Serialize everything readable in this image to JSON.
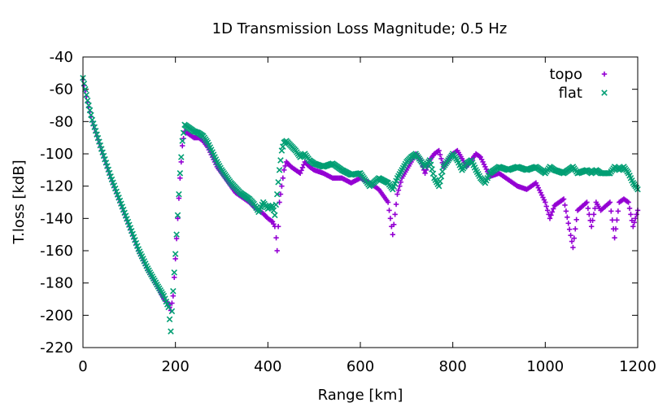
{
  "chart_data": {
    "type": "scatter",
    "title": "1D Transmission Loss Magnitude; 0.5 Hz",
    "xlabel": "Range [km]",
    "ylabel": "T.loss [kdB]",
    "xlim": [
      0,
      1200
    ],
    "ylim": [
      -220,
      -40
    ],
    "xticks": [
      0,
      200,
      400,
      600,
      800,
      1000,
      1200
    ],
    "yticks": [
      -220,
      -200,
      -180,
      -160,
      -140,
      -120,
      -100,
      -80,
      -60,
      -40
    ],
    "grid": false,
    "legend_position": "top-right",
    "series": [
      {
        "name": "topo",
        "color": "#9400d3",
        "marker": "plus",
        "points": [
          [
            0,
            -54
          ],
          [
            10,
            -68
          ],
          [
            20,
            -80
          ],
          [
            40,
            -98
          ],
          [
            60,
            -115
          ],
          [
            80,
            -130
          ],
          [
            100,
            -145
          ],
          [
            120,
            -160
          ],
          [
            140,
            -172
          ],
          [
            160,
            -182
          ],
          [
            175,
            -190
          ],
          [
            185,
            -193
          ],
          [
            190,
            -197
          ],
          [
            195,
            -188
          ],
          [
            200,
            -165
          ],
          [
            205,
            -140
          ],
          [
            210,
            -115
          ],
          [
            215,
            -95
          ],
          [
            220,
            -86
          ],
          [
            230,
            -88
          ],
          [
            240,
            -90
          ],
          [
            250,
            -90
          ],
          [
            260,
            -92
          ],
          [
            270,
            -96
          ],
          [
            280,
            -102
          ],
          [
            290,
            -108
          ],
          [
            300,
            -112
          ],
          [
            310,
            -116
          ],
          [
            320,
            -120
          ],
          [
            330,
            -124
          ],
          [
            340,
            -126
          ],
          [
            350,
            -128
          ],
          [
            360,
            -130
          ],
          [
            370,
            -133
          ],
          [
            380,
            -135
          ],
          [
            390,
            -137
          ],
          [
            400,
            -140
          ],
          [
            410,
            -142
          ],
          [
            415,
            -145
          ],
          [
            418,
            -152
          ],
          [
            420,
            -160
          ],
          [
            425,
            -130
          ],
          [
            430,
            -120
          ],
          [
            435,
            -110
          ],
          [
            440,
            -105
          ],
          [
            450,
            -108
          ],
          [
            460,
            -110
          ],
          [
            470,
            -112
          ],
          [
            480,
            -105
          ],
          [
            490,
            -108
          ],
          [
            500,
            -110
          ],
          [
            520,
            -112
          ],
          [
            540,
            -115
          ],
          [
            560,
            -115
          ],
          [
            580,
            -118
          ],
          [
            600,
            -115
          ],
          [
            620,
            -118
          ],
          [
            640,
            -122
          ],
          [
            660,
            -130
          ],
          [
            670,
            -150
          ],
          [
            680,
            -125
          ],
          [
            690,
            -115
          ],
          [
            700,
            -110
          ],
          [
            710,
            -105
          ],
          [
            720,
            -100
          ],
          [
            730,
            -104
          ],
          [
            740,
            -112
          ],
          [
            750,
            -104
          ],
          [
            760,
            -100
          ],
          [
            770,
            -98
          ],
          [
            780,
            -108
          ],
          [
            790,
            -104
          ],
          [
            800,
            -100
          ],
          [
            810,
            -98
          ],
          [
            820,
            -103
          ],
          [
            830,
            -108
          ],
          [
            840,
            -104
          ],
          [
            850,
            -100
          ],
          [
            860,
            -102
          ],
          [
            870,
            -108
          ],
          [
            880,
            -114
          ],
          [
            900,
            -112
          ],
          [
            920,
            -116
          ],
          [
            940,
            -120
          ],
          [
            960,
            -122
          ],
          [
            980,
            -118
          ],
          [
            1000,
            -130
          ],
          [
            1010,
            -140
          ],
          [
            1020,
            -132
          ],
          [
            1040,
            -128
          ],
          [
            1060,
            -158
          ],
          [
            1070,
            -135
          ],
          [
            1090,
            -130
          ],
          [
            1100,
            -145
          ],
          [
            1110,
            -130
          ],
          [
            1120,
            -135
          ],
          [
            1140,
            -130
          ],
          [
            1150,
            -152
          ],
          [
            1160,
            -130
          ],
          [
            1170,
            -128
          ],
          [
            1180,
            -130
          ],
          [
            1190,
            -145
          ],
          [
            1200,
            -135
          ]
        ]
      },
      {
        "name": "flat",
        "color": "#009e73",
        "marker": "cross",
        "points": [
          [
            0,
            -53
          ],
          [
            10,
            -67
          ],
          [
            20,
            -79
          ],
          [
            40,
            -97
          ],
          [
            60,
            -114
          ],
          [
            80,
            -129
          ],
          [
            100,
            -144
          ],
          [
            120,
            -159
          ],
          [
            140,
            -171
          ],
          [
            160,
            -181
          ],
          [
            175,
            -188
          ],
          [
            185,
            -195
          ],
          [
            190,
            -210
          ],
          [
            195,
            -185
          ],
          [
            200,
            -162
          ],
          [
            205,
            -138
          ],
          [
            210,
            -112
          ],
          [
            215,
            -92
          ],
          [
            220,
            -82
          ],
          [
            230,
            -84
          ],
          [
            240,
            -86
          ],
          [
            250,
            -87
          ],
          [
            260,
            -89
          ],
          [
            270,
            -93
          ],
          [
            280,
            -99
          ],
          [
            290,
            -105
          ],
          [
            300,
            -110
          ],
          [
            310,
            -114
          ],
          [
            320,
            -118
          ],
          [
            330,
            -121
          ],
          [
            340,
            -124
          ],
          [
            350,
            -126
          ],
          [
            360,
            -128
          ],
          [
            370,
            -131
          ],
          [
            380,
            -136
          ],
          [
            390,
            -130
          ],
          [
            400,
            -134
          ],
          [
            410,
            -132
          ],
          [
            415,
            -138
          ],
          [
            420,
            -125
          ],
          [
            425,
            -110
          ],
          [
            430,
            -98
          ],
          [
            435,
            -93
          ],
          [
            440,
            -92
          ],
          [
            450,
            -95
          ],
          [
            460,
            -98
          ],
          [
            470,
            -102
          ],
          [
            480,
            -100
          ],
          [
            490,
            -104
          ],
          [
            500,
            -106
          ],
          [
            520,
            -108
          ],
          [
            540,
            -106
          ],
          [
            560,
            -110
          ],
          [
            580,
            -113
          ],
          [
            600,
            -112
          ],
          [
            620,
            -120
          ],
          [
            640,
            -115
          ],
          [
            660,
            -118
          ],
          [
            670,
            -122
          ],
          [
            680,
            -115
          ],
          [
            690,
            -110
          ],
          [
            700,
            -105
          ],
          [
            710,
            -102
          ],
          [
            720,
            -100
          ],
          [
            730,
            -104
          ],
          [
            740,
            -108
          ],
          [
            750,
            -104
          ],
          [
            760,
            -115
          ],
          [
            770,
            -120
          ],
          [
            780,
            -108
          ],
          [
            790,
            -104
          ],
          [
            800,
            -100
          ],
          [
            810,
            -104
          ],
          [
            820,
            -110
          ],
          [
            830,
            -106
          ],
          [
            840,
            -104
          ],
          [
            850,
            -110
          ],
          [
            860,
            -115
          ],
          [
            870,
            -118
          ],
          [
            880,
            -112
          ],
          [
            900,
            -108
          ],
          [
            920,
            -110
          ],
          [
            940,
            -108
          ],
          [
            960,
            -110
          ],
          [
            980,
            -108
          ],
          [
            1000,
            -112
          ],
          [
            1010,
            -108
          ],
          [
            1020,
            -110
          ],
          [
            1040,
            -112
          ],
          [
            1060,
            -108
          ],
          [
            1070,
            -112
          ],
          [
            1090,
            -110
          ],
          [
            1100,
            -112
          ],
          [
            1110,
            -110
          ],
          [
            1120,
            -112
          ],
          [
            1140,
            -112
          ],
          [
            1150,
            -108
          ],
          [
            1160,
            -110
          ],
          [
            1170,
            -108
          ],
          [
            1180,
            -112
          ],
          [
            1190,
            -118
          ],
          [
            1200,
            -122
          ]
        ]
      }
    ]
  }
}
